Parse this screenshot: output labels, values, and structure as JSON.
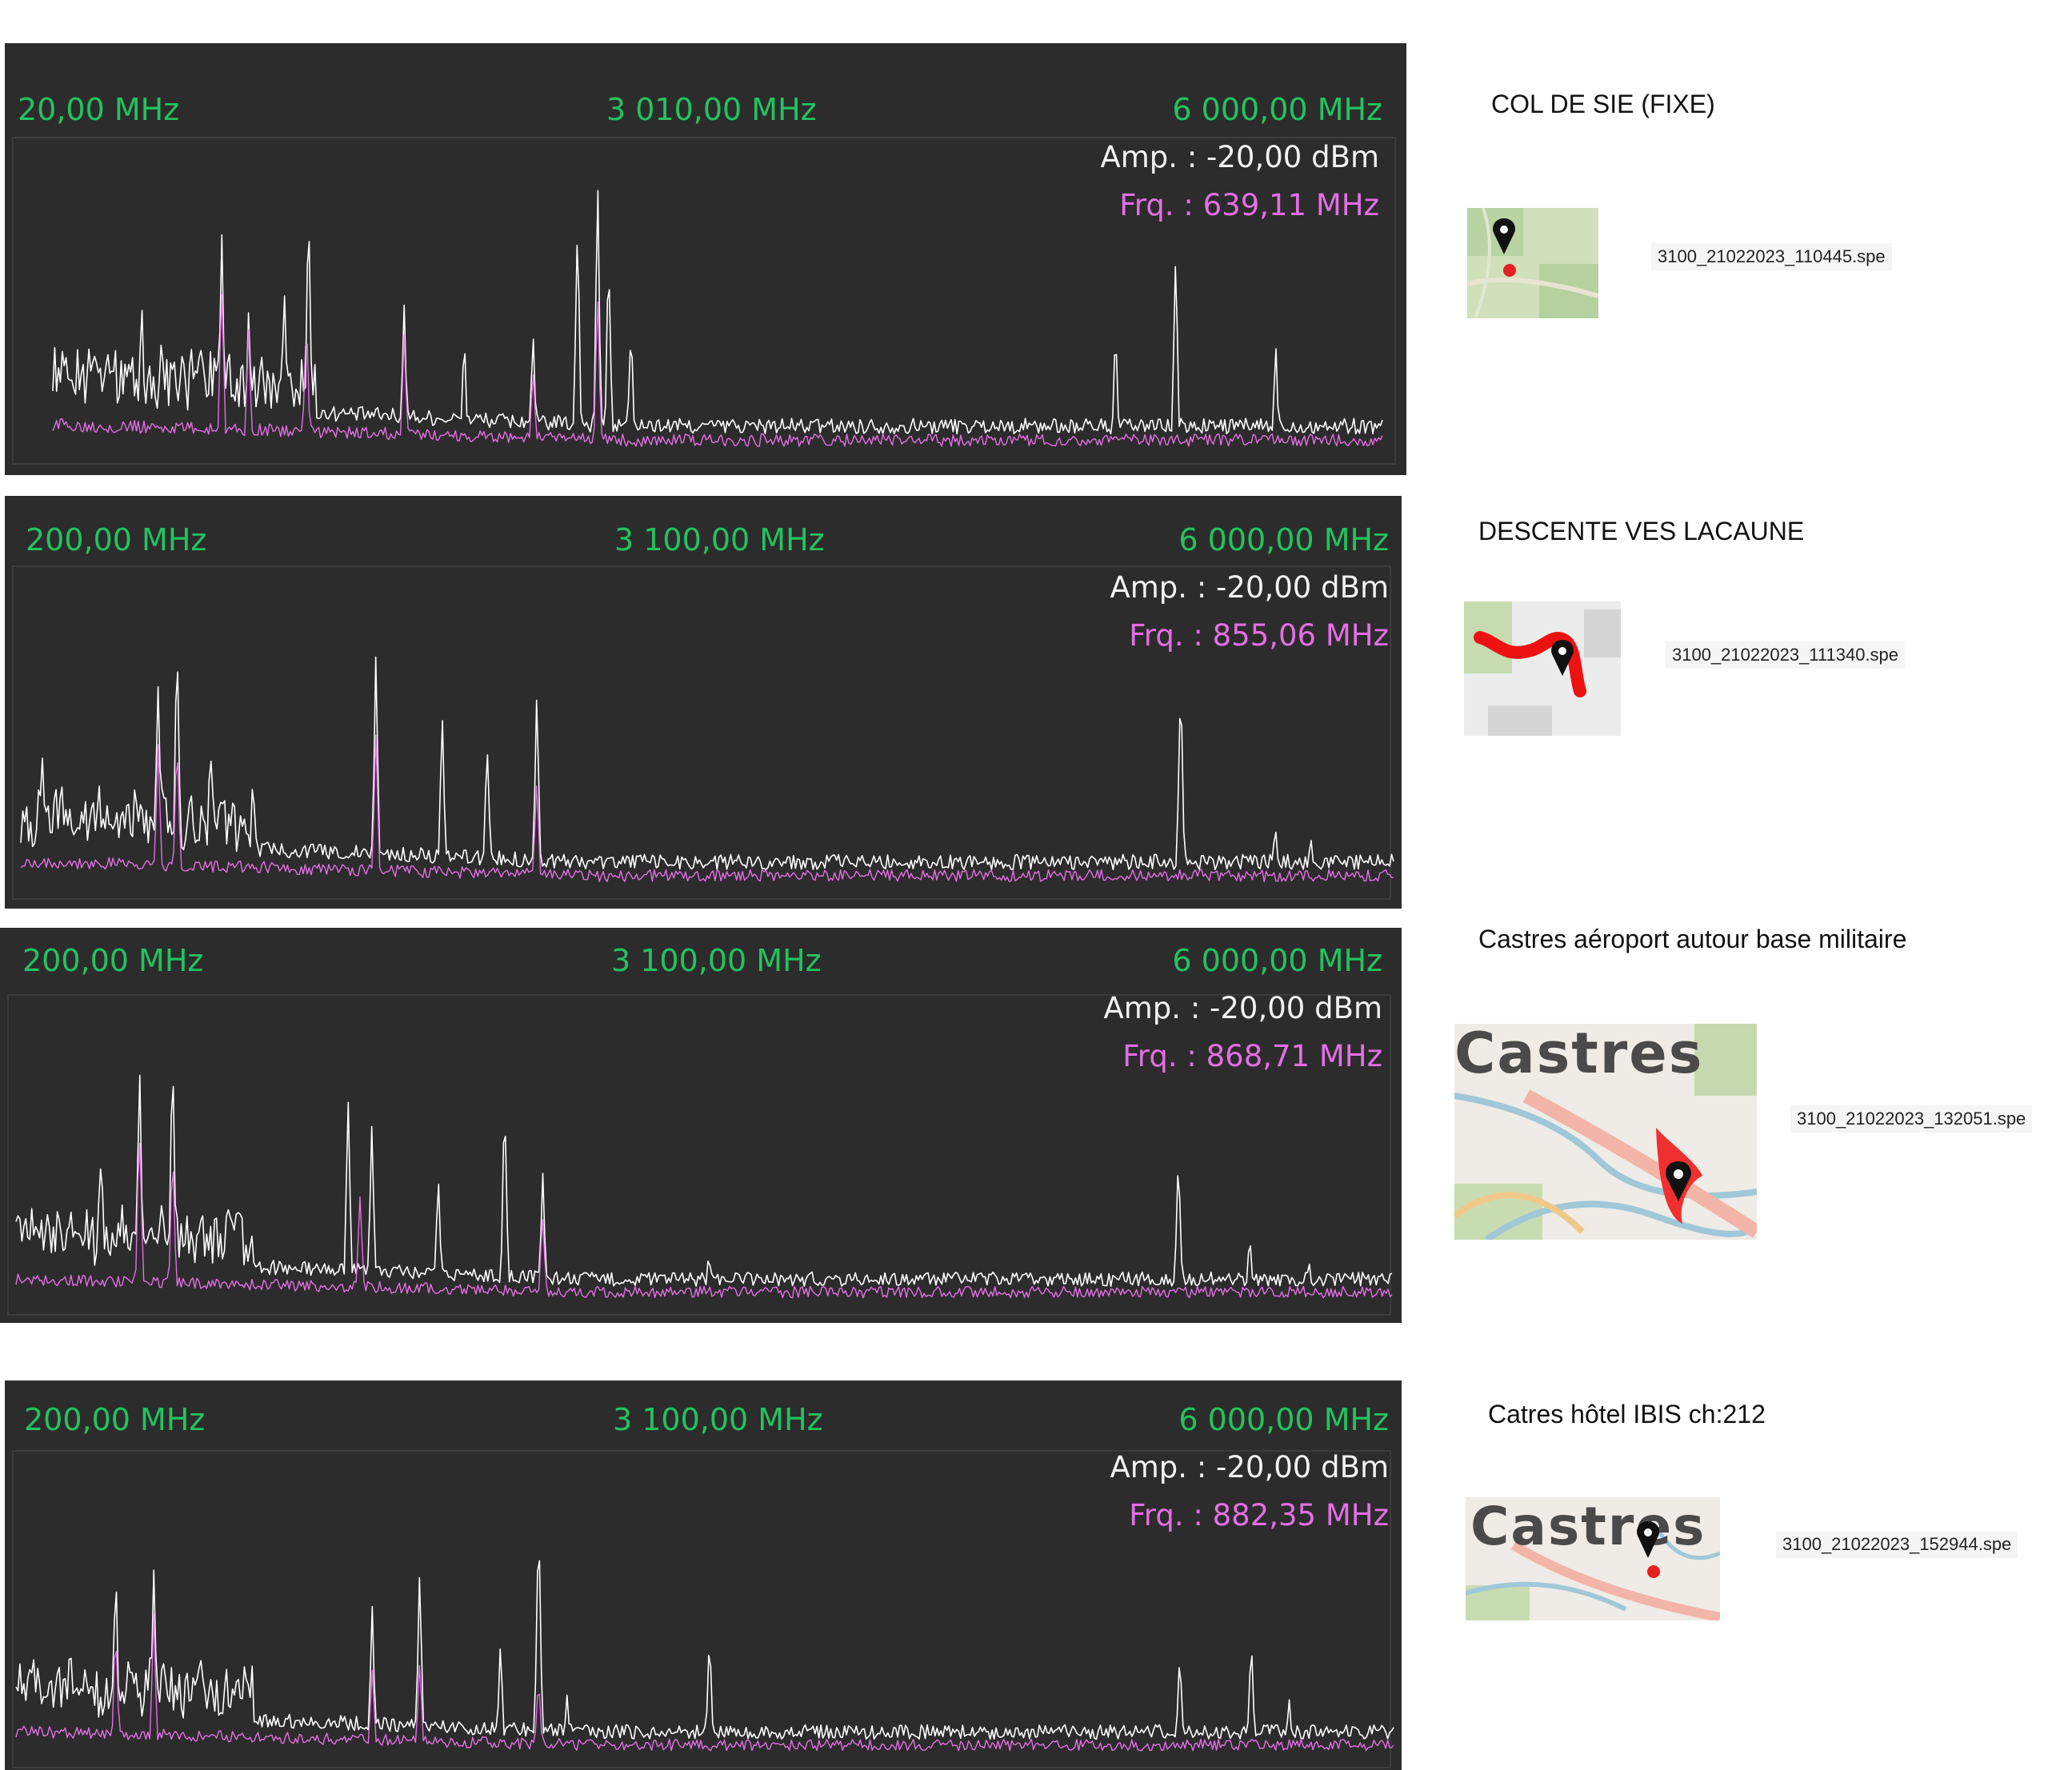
{
  "chart_data": [
    {
      "type": "line",
      "freq_start": "20,00 MHz",
      "freq_center": "3 010,00 MHz",
      "freq_end": "6 000,00 MHz",
      "amplitude": "Amp. : -20,00 dBm",
      "marker_frequency": "Frq. : 639,11 MHz",
      "x_range_mhz": [
        20,
        6000
      ],
      "series": [
        {
          "color": "#ffffff",
          "peaks": [
            [
              420,
              0.55
            ],
            [
              780,
              0.75
            ],
            [
              900,
              0.48
            ],
            [
              1060,
              0.6
            ],
            [
              1170,
              0.95
            ],
            [
              1600,
              0.55
            ],
            [
              1870,
              0.42
            ],
            [
              2180,
              0.4
            ],
            [
              2380,
              0.85
            ],
            [
              2470,
              0.95
            ],
            [
              2520,
              0.72
            ],
            [
              2620,
              0.45
            ],
            [
              4800,
              0.42
            ],
            [
              5070,
              0.7
            ],
            [
              5520,
              0.38
            ]
          ]
        },
        {
          "color": "#e46fe4",
          "peaks": [
            [
              780,
              0.6
            ],
            [
              900,
              0.42
            ],
            [
              1160,
              0.5
            ],
            [
              1600,
              0.4
            ],
            [
              2180,
              0.3
            ],
            [
              2470,
              0.55
            ]
          ]
        }
      ]
    },
    {
      "type": "line",
      "freq_start": "200,00 MHz",
      "freq_center": "3 100,00 MHz",
      "freq_end": "6 000,00 MHz",
      "amplitude": "Amp. : -20,00 dBm",
      "marker_frequency": "Frq. : 855,06 MHz",
      "x_range_mhz": [
        200,
        6000
      ],
      "series": [
        {
          "color": "#ffffff",
          "peaks": [
            [
              290,
              0.5
            ],
            [
              780,
              0.75
            ],
            [
              860,
              0.9
            ],
            [
              1000,
              0.55
            ],
            [
              1700,
              0.82
            ],
            [
              1980,
              0.6
            ],
            [
              2170,
              0.55
            ],
            [
              2380,
              0.72
            ],
            [
              2800,
              0.12
            ],
            [
              4200,
              0.12
            ],
            [
              5100,
              0.75
            ],
            [
              5500,
              0.25
            ],
            [
              5650,
              0.2
            ]
          ]
        },
        {
          "color": "#e46fe4",
          "peaks": [
            [
              780,
              0.5
            ],
            [
              860,
              0.55
            ],
            [
              1700,
              0.55
            ],
            [
              2380,
              0.4
            ]
          ]
        }
      ]
    },
    {
      "type": "line",
      "freq_start": "200,00 MHz",
      "freq_center": "3 100,00 MHz",
      "freq_end": "6 000,00 MHz",
      "amplitude": "Amp. : -20,00 dBm",
      "marker_frequency": "Frq. : 868,71 MHz",
      "x_range_mhz": [
        200,
        6000
      ],
      "series": [
        {
          "color": "#ffffff",
          "peaks": [
            [
              560,
              0.6
            ],
            [
              720,
              0.9
            ],
            [
              860,
              0.95
            ],
            [
              1600,
              0.8
            ],
            [
              1700,
              0.7
            ],
            [
              1980,
              0.5
            ],
            [
              2260,
              0.8
            ],
            [
              2420,
              0.48
            ],
            [
              3120,
              0.2
            ],
            [
              5100,
              0.6
            ],
            [
              5400,
              0.25
            ],
            [
              5650,
              0.18
            ]
          ]
        },
        {
          "color": "#e46fe4",
          "peaks": [
            [
              720,
              0.7
            ],
            [
              860,
              0.6
            ],
            [
              1650,
              0.4
            ],
            [
              2420,
              0.35
            ]
          ]
        }
      ]
    },
    {
      "type": "line",
      "freq_start": "200,00 MHz",
      "freq_center": "3 100,00 MHz",
      "freq_end": "6 000,00 MHz",
      "amplitude": "Amp. : -20,00 dBm",
      "marker_frequency": "Frq. : 882,35 MHz",
      "x_range_mhz": [
        200,
        6000
      ],
      "series": [
        {
          "color": "#ffffff",
          "peaks": [
            [
              620,
              0.7
            ],
            [
              780,
              0.7
            ],
            [
              1700,
              0.55
            ],
            [
              1900,
              0.7
            ],
            [
              2240,
              0.42
            ],
            [
              2400,
              0.95
            ],
            [
              2520,
              0.22
            ],
            [
              3120,
              0.45
            ],
            [
              5100,
              0.4
            ],
            [
              5400,
              0.45
            ],
            [
              5560,
              0.22
            ]
          ]
        },
        {
          "color": "#e46fe4",
          "peaks": [
            [
              620,
              0.5
            ],
            [
              780,
              0.5
            ],
            [
              1700,
              0.35
            ],
            [
              1900,
              0.35
            ],
            [
              2400,
              0.3
            ]
          ]
        }
      ]
    }
  ],
  "locations": [
    {
      "title": "COL DE SIE (FIXE)",
      "file": "3100_21022023_110445.spe",
      "map_label": ""
    },
    {
      "title": "DESCENTE VES LACAUNE",
      "file": "3100_21022023_111340.spe",
      "map_label": ""
    },
    {
      "title": "Castres aéroport autour base militaire",
      "file": "3100_21022023_132051.spe",
      "map_label": "Castres"
    },
    {
      "title": "Catres hôtel IBIS ch:212",
      "file": "3100_21022023_152944.spe",
      "map_label": "Castres"
    }
  ],
  "icons": {
    "marker": "map-pin-icon"
  }
}
